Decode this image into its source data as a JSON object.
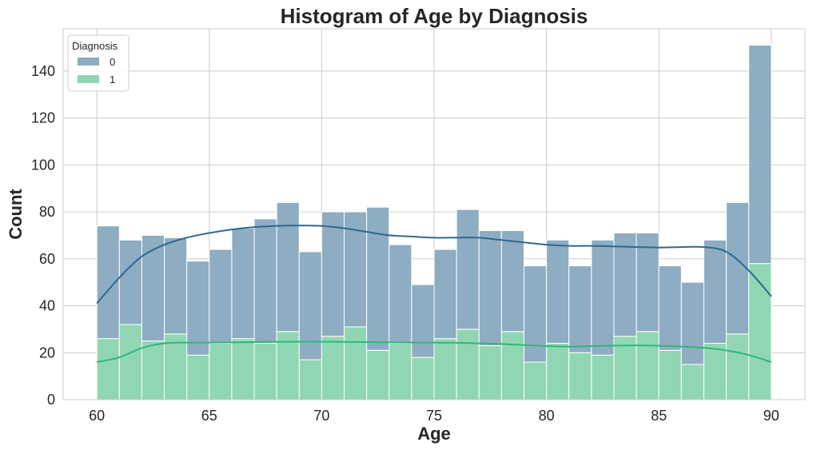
{
  "chart_data": {
    "type": "bar",
    "title": "Histogram of Age by Diagnosis",
    "xlabel": "Age",
    "ylabel": "Count",
    "xlim": [
      58.5,
      91.5
    ],
    "ylim": [
      0,
      158
    ],
    "x_ticks": [
      60,
      65,
      70,
      75,
      80,
      85,
      90
    ],
    "y_ticks": [
      0,
      20,
      40,
      60,
      80,
      100,
      120,
      140
    ],
    "grid": true,
    "stacked": true,
    "legend": {
      "title": "Diagnosis",
      "placement": "top-left"
    },
    "bin_edges": [
      60,
      61,
      62,
      63,
      64,
      65,
      66,
      67,
      68,
      69,
      70,
      71,
      72,
      73,
      74,
      75,
      76,
      77,
      78,
      79,
      80,
      81,
      82,
      83,
      84,
      85,
      86,
      87,
      88,
      89,
      90
    ],
    "series": [
      {
        "name": "0",
        "color": "#8eacc2",
        "kde_color": "#2e6a8e",
        "values": [
          48,
          36,
          45,
          41,
          40,
          40,
          47,
          53,
          55,
          46,
          53,
          49,
          61,
          42,
          31,
          38,
          51,
          49,
          43,
          41,
          44,
          37,
          49,
          44,
          42,
          36,
          35,
          44,
          56,
          93
        ]
      },
      {
        "name": "1",
        "color": "#91d6b2",
        "kde_color": "#2db87a",
        "values": [
          26,
          32,
          25,
          28,
          19,
          24,
          26,
          24,
          29,
          17,
          27,
          31,
          21,
          24,
          18,
          26,
          30,
          23,
          29,
          16,
          24,
          20,
          19,
          27,
          29,
          21,
          15,
          24,
          28,
          58
        ]
      }
    ],
    "kde": [
      {
        "name": "0",
        "x": [
          60,
          61,
          62,
          63,
          64,
          65,
          66,
          67,
          68,
          69,
          70,
          71,
          72,
          73,
          74,
          75,
          76,
          77,
          78,
          79,
          80,
          81,
          82,
          83,
          84,
          85,
          86,
          87,
          88,
          89,
          90
        ],
        "y": [
          41,
          52,
          61,
          66,
          69,
          71,
          72.5,
          73.5,
          74,
          74.2,
          74,
          73,
          71.5,
          70,
          69.5,
          69,
          69,
          69,
          68,
          67,
          66,
          65.5,
          65.5,
          65.3,
          65,
          64.8,
          65,
          65,
          63,
          55,
          44
        ]
      },
      {
        "name": "1",
        "x": [
          60,
          61,
          62,
          63,
          64,
          65,
          66,
          67,
          68,
          69,
          70,
          71,
          72,
          73,
          74,
          75,
          76,
          77,
          78,
          79,
          80,
          81,
          82,
          83,
          84,
          85,
          86,
          87,
          88,
          89,
          90
        ],
        "y": [
          16,
          18,
          22,
          24,
          24.3,
          24.3,
          24.4,
          24.5,
          24.6,
          24.7,
          24.7,
          24.6,
          24.5,
          24.4,
          24.3,
          24.3,
          24.2,
          24,
          23.7,
          23.3,
          22.8,
          22.6,
          22.8,
          23,
          23.1,
          23,
          22.6,
          22.1,
          21,
          19,
          16
        ]
      }
    ]
  }
}
